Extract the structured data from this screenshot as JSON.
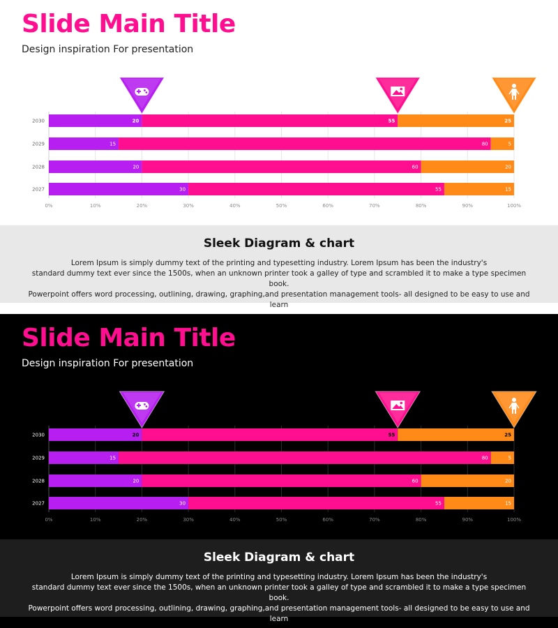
{
  "colors": {
    "purple": "#b61ff0",
    "pink": "#ff0f8f",
    "orange": "#ff8a18",
    "accent": "#ff0f8f"
  },
  "slides": [
    {
      "theme": "light",
      "title": "Slide Main Title",
      "subtitle": "Design inspiration For presentation",
      "footer_title": "Sleek Diagram & chart",
      "footer_lines": [
        "Lorem Ipsum is simply dummy text of the printing and typesetting industry. Lorem Ipsum has been the industry's",
        "standard dummy text ever since the 1500s, when an unknown printer took a galley of type and scrambled it to make a type specimen book.",
        "Powerpoint offers word processing, outlining, drawing, graphing,and presentation management tools- all designed to be easy to use and learn"
      ],
      "markers": [
        {
          "icon": "gamepad-icon",
          "color": "purple",
          "at": 20
        },
        {
          "icon": "image-icon",
          "color": "pink",
          "at": 75
        },
        {
          "icon": "person-icon",
          "color": "orange",
          "at": 100
        }
      ]
    },
    {
      "theme": "dark",
      "title": "Slide Main Title",
      "subtitle": "Design inspiration For presentation",
      "footer_title": "Sleek Diagram & chart",
      "footer_lines": [
        "Lorem Ipsum is simply dummy text of the printing and typesetting industry. Lorem Ipsum has been the industry's",
        "standard dummy text ever since the 1500s, when an unknown printer took a galley of type and scrambled it to make a type specimen book.",
        "Powerpoint offers word processing, outlining, drawing, graphing,and presentation management tools- all designed to be easy to use and learn"
      ],
      "markers": [
        {
          "icon": "gamepad-icon",
          "color": "purple",
          "at": 20
        },
        {
          "icon": "image-icon",
          "color": "pink",
          "at": 75
        },
        {
          "icon": "person-icon",
          "color": "orange",
          "at": 100
        }
      ]
    }
  ],
  "chart_data": [
    {
      "type": "bar",
      "orientation": "horizontal",
      "stacked": true,
      "categories": [
        "2030",
        "2029",
        "2028",
        "2027"
      ],
      "series": [
        {
          "color": "#b61ff0",
          "values": [
            20,
            15,
            20,
            30
          ]
        },
        {
          "color": "#ff0f8f",
          "values": [
            55,
            80,
            60,
            55
          ]
        },
        {
          "color": "#ff8a18",
          "values": [
            25,
            5,
            20,
            15
          ]
        }
      ],
      "xticks": [
        "0%",
        "10%",
        "20%",
        "30%",
        "40%",
        "50%",
        "60%",
        "70%",
        "80%",
        "90%",
        "100%"
      ],
      "xlim": [
        0,
        100
      ],
      "grid": true,
      "legend": "none"
    },
    {
      "type": "bar",
      "orientation": "horizontal",
      "stacked": true,
      "categories": [
        "2030",
        "2029",
        "2028",
        "2027"
      ],
      "series": [
        {
          "color": "#b61ff0",
          "values": [
            20,
            15,
            20,
            30
          ]
        },
        {
          "color": "#ff0f8f",
          "values": [
            55,
            80,
            60,
            55
          ]
        },
        {
          "color": "#ff8a18",
          "values": [
            25,
            5,
            20,
            15
          ]
        }
      ],
      "xticks": [
        "0%",
        "10%",
        "20%",
        "30%",
        "40%",
        "50%",
        "60%",
        "70%",
        "80%",
        "90%",
        "100%"
      ],
      "xlim": [
        0,
        100
      ],
      "grid": true,
      "legend": "none"
    }
  ]
}
